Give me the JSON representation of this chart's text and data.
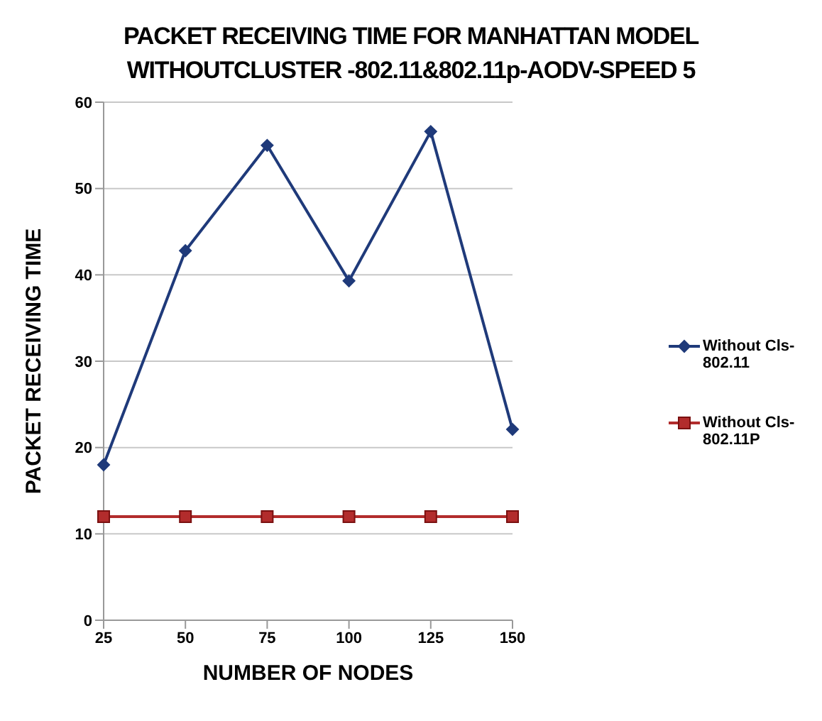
{
  "chart_data": {
    "type": "line",
    "title": "PACKET RECEIVING TIME FOR MANHATTAN MODEL WITHOUTCLUSTER -802.11&802.11p-AODV-SPEED 5",
    "xlabel": "NUMBER OF NODES",
    "ylabel": "PACKET RECEIVING TIME",
    "categories": [
      "25",
      "50",
      "75",
      "100",
      "125",
      "150"
    ],
    "series": [
      {
        "name": "Without Cls-802.11",
        "color": "#1f3a7a",
        "marker": "diamond",
        "values": [
          18,
          42.8,
          55,
          39.3,
          56.6,
          22.1
        ]
      },
      {
        "name": "Without Cls-802.11P",
        "color": "#b22c2c",
        "marker": "square",
        "values": [
          12,
          12,
          12,
          12,
          12,
          12
        ]
      }
    ],
    "ylim": [
      0,
      60
    ],
    "yticks": [
      0,
      10,
      20,
      30,
      40,
      50,
      60
    ],
    "grid": "y",
    "legend": "right",
    "line_style": "solid"
  }
}
